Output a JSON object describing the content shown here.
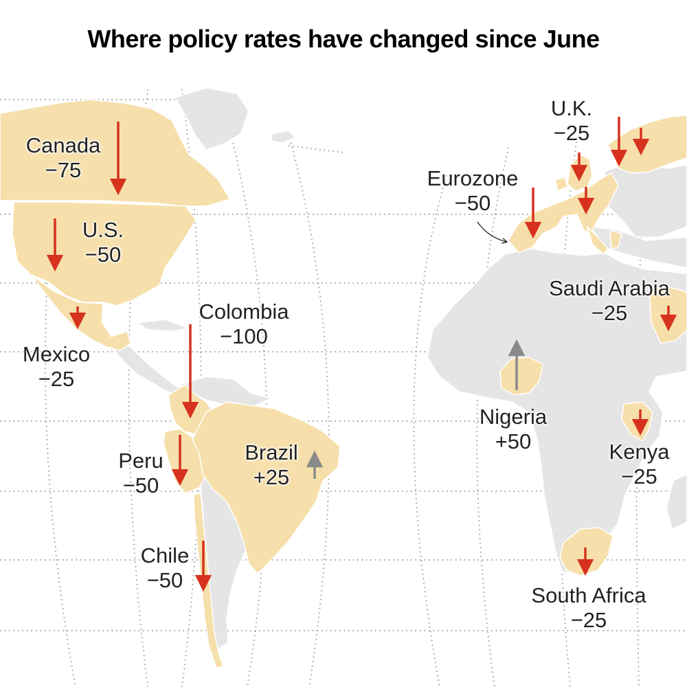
{
  "title": "Where policy rates have changed since June",
  "colors": {
    "highlight_land": "#f6dfaa",
    "other_land": "#e5e5e5",
    "cut_arrow": "#d6321e",
    "hike_arrow": "#8a8a8a",
    "graticule": "#9a9a9a"
  },
  "countries": [
    {
      "id": "canada",
      "name": "Canada",
      "change": "−75",
      "direction": "down"
    },
    {
      "id": "us",
      "name": "U.S.",
      "change": "−50",
      "direction": "down"
    },
    {
      "id": "mexico",
      "name": "Mexico",
      "change": "−25",
      "direction": "down"
    },
    {
      "id": "colombia",
      "name": "Colombia",
      "change": "−100",
      "direction": "down"
    },
    {
      "id": "peru",
      "name": "Peru",
      "change": "−50",
      "direction": "down"
    },
    {
      "id": "brazil",
      "name": "Brazil",
      "change": "+25",
      "direction": "up"
    },
    {
      "id": "chile",
      "name": "Chile",
      "change": "−50",
      "direction": "down"
    },
    {
      "id": "uk",
      "name": "U.K.",
      "change": "−25",
      "direction": "down"
    },
    {
      "id": "eurozone",
      "name": "Eurozone",
      "change": "−50",
      "direction": "down"
    },
    {
      "id": "saudi",
      "name": "Saudi Arabia",
      "change": "−25",
      "direction": "down"
    },
    {
      "id": "nigeria",
      "name": "Nigeria",
      "change": "+50",
      "direction": "up"
    },
    {
      "id": "kenya",
      "name": "Kenya",
      "change": "−25",
      "direction": "down"
    },
    {
      "id": "southafrica",
      "name": "South Africa",
      "change": "−25",
      "direction": "down"
    }
  ]
}
